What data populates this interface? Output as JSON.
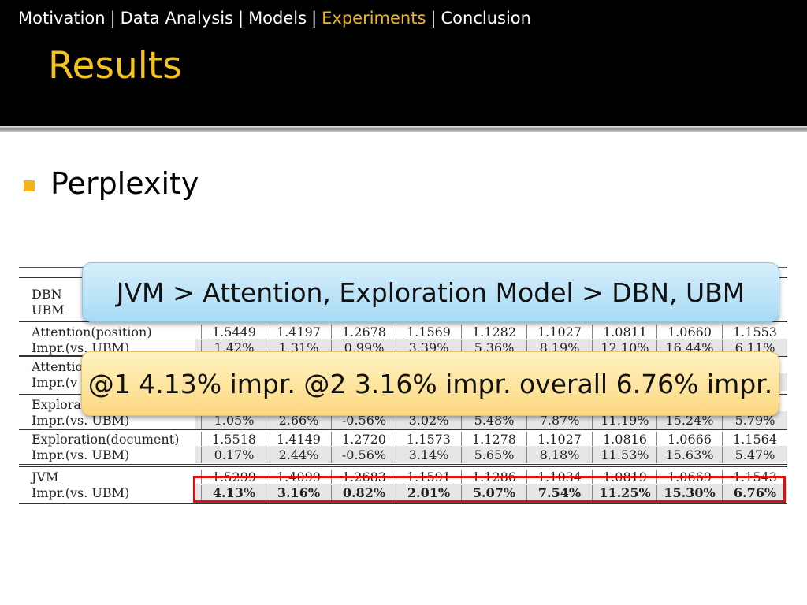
{
  "nav": {
    "items": [
      "Motivation",
      "Data Analysis",
      "Models",
      "Experiments",
      "Conclusion"
    ],
    "separator": "|",
    "active_index": 3
  },
  "title": "Results",
  "bullet": "Perplexity",
  "callouts": {
    "ranking": "JVM > Attention, Exploration Model > DBN, UBM",
    "improvement": "@1 4.13% impr. @2 3.16% impr. overall 6.76% impr."
  },
  "table": {
    "rows": [
      {
        "label": "DBN",
        "values": [
          "",
          "",
          "",
          "",
          "",
          "",
          "",
          "",
          ""
        ]
      },
      {
        "label": "UBM",
        "values": [
          "",
          "",
          "",
          "",
          "",
          "",
          "",
          "",
          ""
        ]
      },
      {
        "label": "Attention(position)",
        "values": [
          "1.5449",
          "1.4197",
          "1.2678",
          "1.1569",
          "1.1282",
          "1.1027",
          "1.0811",
          "1.0660",
          "1.1553"
        ]
      },
      {
        "label": "Impr.(vs. UBM)",
        "values": [
          "1.42%",
          "1.31%",
          "0.99%",
          "3.39%",
          "5.36%",
          "8.19%",
          "12.10%",
          "16.44%",
          "6.11%"
        ]
      },
      {
        "label": "Attention",
        "values": [
          "",
          "",
          "",
          "",
          "",
          "",
          "",
          "",
          ""
        ]
      },
      {
        "label": "Impr.(v",
        "values": [
          "",
          "",
          "",
          "",
          "",
          "",
          "",
          "",
          ""
        ]
      },
      {
        "label": "Explora",
        "values": [
          "",
          "",
          "",
          "",
          "",
          "",
          "",
          "",
          ""
        ]
      },
      {
        "label": "Impr.(vs. UBM)",
        "values": [
          "1.05%",
          "2.66%",
          "-0.56%",
          "3.02%",
          "5.48%",
          "7.87%",
          "11.19%",
          "15.24%",
          "5.79%"
        ]
      },
      {
        "label": "Exploration(document)",
        "values": [
          "1.5518",
          "1.4149",
          "1.2720",
          "1.1573",
          "1.1278",
          "1.1027",
          "1.0816",
          "1.0666",
          "1.1564"
        ]
      },
      {
        "label": "Impr.(vs. UBM)",
        "values": [
          "0.17%",
          "2.44%",
          "-0.56%",
          "3.14%",
          "5.65%",
          "8.18%",
          "11.53%",
          "15.63%",
          "5.47%"
        ]
      },
      {
        "label": "JVM",
        "values": [
          "1.5299",
          "1.4099",
          "1.2683",
          "1.1591",
          "1.1286",
          "1.1034",
          "1.0819",
          "1.0669",
          "1.1543"
        ]
      },
      {
        "label": "Impr.(vs. UBM)",
        "values": [
          "4.13%",
          "3.16%",
          "0.82%",
          "2.01%",
          "5.07%",
          "7.54%",
          "11.25%",
          "15.30%",
          "6.76%"
        ]
      }
    ]
  },
  "colors": {
    "accent": "#f4b41a",
    "highlight": "#e01010"
  }
}
